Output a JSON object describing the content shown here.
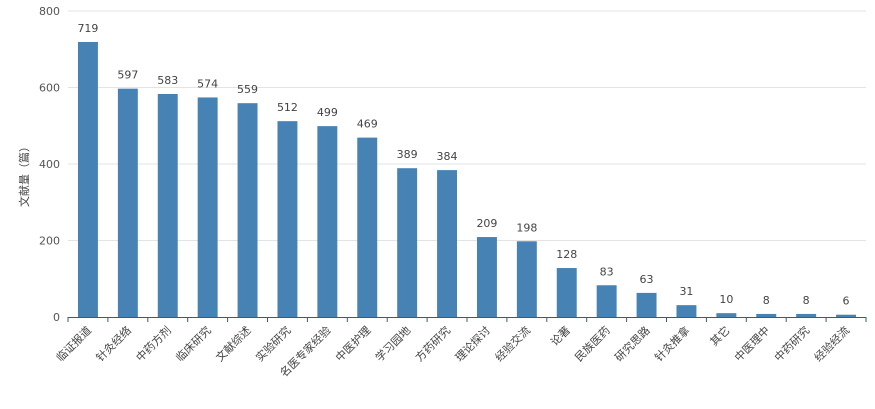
{
  "chart_data": {
    "type": "bar",
    "ylabel": "文献量（篇）",
    "xlabel": "",
    "ylim": [
      0,
      800
    ],
    "yticks": [
      0,
      200,
      400,
      600,
      800
    ],
    "grid": true,
    "bar_color": "#4682b4",
    "categories": [
      "临证报道",
      "针灸经络",
      "中药方剂",
      "临床研究",
      "文献综述",
      "实验研究",
      "名医专家经验",
      "中医护理",
      "学习园地",
      "方药研究",
      "理论探讨",
      "经验交流",
      "论著",
      "民族医药",
      "研究思路",
      "针灸推拿",
      "其它",
      "中医理中",
      "中药研究",
      "经验经流"
    ],
    "values": [
      719,
      597,
      583,
      574,
      559,
      512,
      499,
      469,
      389,
      384,
      209,
      198,
      128,
      83,
      63,
      31,
      10,
      8,
      8,
      6
    ],
    "data_labels": [
      "719",
      "597",
      "583",
      "574",
      "559",
      "512",
      "499",
      "469",
      "389",
      "384",
      "209",
      "198",
      "128",
      "83",
      "63",
      "31",
      "10",
      "8",
      "8",
      "6"
    ]
  }
}
